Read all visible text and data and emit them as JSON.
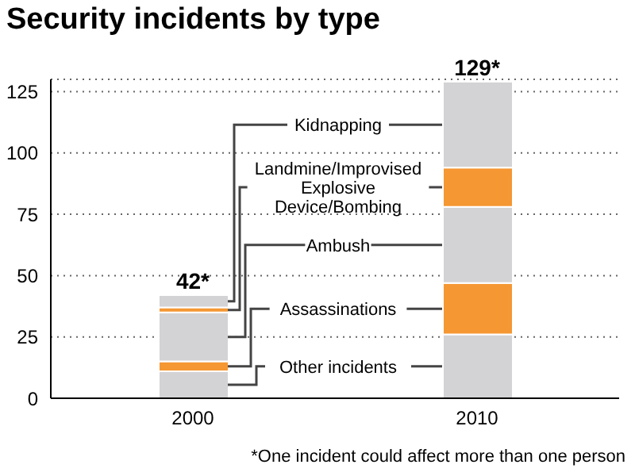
{
  "chart_data": {
    "type": "bar",
    "title": "Security incidents by type",
    "categories": [
      "2000",
      "2010"
    ],
    "stacked": true,
    "series": [
      {
        "name": "Other incidents",
        "color": "#d3d3d5",
        "values": [
          11,
          26
        ]
      },
      {
        "name": "Assassinations",
        "color": "#f59733",
        "values": [
          4,
          21
        ]
      },
      {
        "name": "Ambush",
        "color": "#d3d3d5",
        "values": [
          20,
          31
        ]
      },
      {
        "name": "Landmine/Improvised Explosive Device/Bombing",
        "color": "#f59733",
        "values": [
          2,
          16
        ]
      },
      {
        "name": "Kidnapping",
        "color": "#d3d3d5",
        "values": [
          5,
          35
        ]
      }
    ],
    "totals": [
      "42*",
      "129*"
    ],
    "ylim": [
      0,
      130
    ],
    "yticks": [
      0,
      25,
      50,
      75,
      100,
      125
    ],
    "grid": "y",
    "legend": false,
    "annotations": [
      "*One incident could affect more than one person"
    ]
  }
}
